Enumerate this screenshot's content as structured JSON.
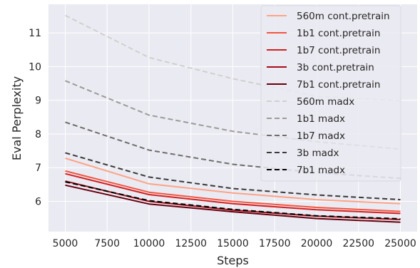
{
  "chart_data": {
    "type": "line",
    "title": "",
    "xlabel": "Steps",
    "ylabel": "Eval Perplexity",
    "xlim": [
      4000,
      26000
    ],
    "ylim": [
      5.1,
      11.85
    ],
    "x_ticks": [
      5000,
      7500,
      10000,
      12500,
      15000,
      17500,
      20000,
      22500,
      25000
    ],
    "x_tick_labels": [
      "5000",
      "7500",
      "10000",
      "12500",
      "15000",
      "17500",
      "20000",
      "22500",
      "25000"
    ],
    "y_ticks": [
      6,
      7,
      8,
      9,
      10,
      11
    ],
    "y_tick_labels": [
      "6",
      "7",
      "8",
      "9",
      "10",
      "11"
    ],
    "grid": true,
    "legend_position": "top-right",
    "x": [
      5000,
      10000,
      15000,
      20000,
      25000
    ],
    "series": [
      {
        "name": "560m cont.pretrain",
        "values": [
          7.28,
          6.52,
          6.25,
          6.05,
          5.93
        ],
        "color": "#fca486",
        "style": "solid"
      },
      {
        "name": "1b1 cont.pretrain",
        "values": [
          6.9,
          6.27,
          6.0,
          5.82,
          5.7
        ],
        "color": "#f3563f",
        "style": "solid"
      },
      {
        "name": "1b7 cont.pretrain",
        "values": [
          6.82,
          6.2,
          5.93,
          5.75,
          5.64
        ],
        "color": "#d32020",
        "style": "solid"
      },
      {
        "name": "3b cont.pretrain",
        "values": [
          6.6,
          6.0,
          5.74,
          5.56,
          5.46
        ],
        "color": "#a50f15",
        "style": "solid"
      },
      {
        "name": "7b1 cont.pretrain",
        "values": [
          6.48,
          5.92,
          5.69,
          5.49,
          5.38
        ],
        "color": "#67000d",
        "style": "solid"
      },
      {
        "name": "560m madx",
        "values": [
          11.52,
          10.27,
          9.64,
          9.12,
          8.98
        ],
        "color": "#d0d0d0",
        "style": "dashed"
      },
      {
        "name": "1b1 madx",
        "values": [
          9.58,
          8.56,
          8.08,
          7.77,
          7.55
        ],
        "color": "#9b9b9b",
        "style": "dashed"
      },
      {
        "name": "1b7 madx",
        "values": [
          8.35,
          7.52,
          7.1,
          6.85,
          6.68
        ],
        "color": "#6e6e6e",
        "style": "dashed"
      },
      {
        "name": "3b madx",
        "values": [
          7.44,
          6.72,
          6.38,
          6.19,
          6.05
        ],
        "color": "#3a3a3a",
        "style": "dashed"
      },
      {
        "name": "7b1 madx",
        "values": [
          6.58,
          6.02,
          5.76,
          5.57,
          5.48
        ],
        "color": "#000000",
        "style": "dashed"
      }
    ]
  }
}
